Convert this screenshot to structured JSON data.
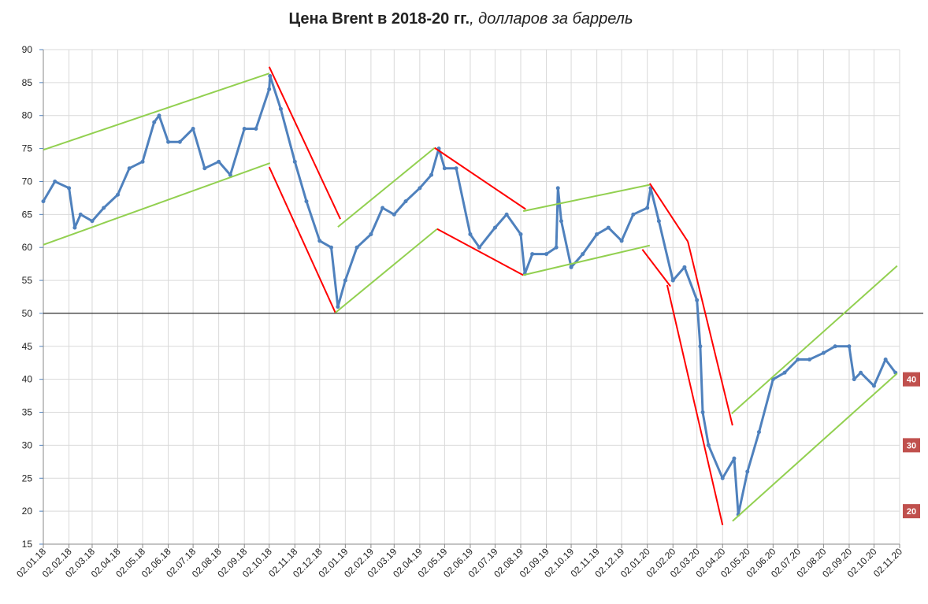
{
  "chart_data": {
    "type": "line",
    "title": "Цена Brent в 2018-20 гг.",
    "title_suffix": ", долларов за баррель",
    "x": [
      "02.01.18",
      "16.01.18",
      "02.02.18",
      "09.02.18",
      "16.02.18",
      "02.03.18",
      "16.03.18",
      "02.04.18",
      "16.04.18",
      "02.05.18",
      "16.05.18",
      "22.05.18",
      "02.06.18",
      "16.06.18",
      "02.07.18",
      "16.07.18",
      "02.08.18",
      "16.08.18",
      "02.09.18",
      "16.09.18",
      "02.10.18",
      "03.10.18",
      "16.10.18",
      "02.11.18",
      "16.11.18",
      "02.12.18",
      "16.12.18",
      "24.12.18",
      "02.01.19",
      "16.01.19",
      "02.02.19",
      "16.02.19",
      "02.03.19",
      "16.03.19",
      "02.04.19",
      "16.04.19",
      "25.04.19",
      "02.05.19",
      "16.05.19",
      "02.06.19",
      "13.06.19",
      "02.07.19",
      "16.07.19",
      "02.08.19",
      "07.08.19",
      "16.08.19",
      "02.09.19",
      "14.09.19",
      "16.09.19",
      "20.09.19",
      "02.10.19",
      "16.10.19",
      "02.11.19",
      "16.11.19",
      "02.12.19",
      "16.12.19",
      "02.01.20",
      "06.01.20",
      "16.01.20",
      "02.02.20",
      "16.02.20",
      "02.03.20",
      "06.03.20",
      "09.03.20",
      "16.03.20",
      "02.04.20",
      "16.04.20",
      "21.04.20",
      "02.05.20",
      "16.05.20",
      "02.06.20",
      "16.06.20",
      "02.07.20",
      "16.07.20",
      "02.08.20",
      "16.08.20",
      "02.09.20",
      "08.09.20",
      "16.09.20",
      "02.10.20",
      "16.10.20",
      "28.10.20"
    ],
    "series": [
      {
        "name": "Brent",
        "color": "#4f81bd",
        "values": [
          67,
          70,
          69,
          63,
          65,
          64,
          66,
          68,
          72,
          73,
          79,
          80,
          76,
          76,
          78,
          72,
          73,
          71,
          78,
          78,
          84,
          86,
          81,
          73,
          67,
          61,
          60,
          51,
          55,
          60,
          62,
          66,
          65,
          67,
          69,
          71,
          75,
          72,
          72,
          62,
          60,
          63,
          65,
          62,
          56,
          59,
          59,
          60,
          69,
          64,
          57,
          59,
          62,
          63,
          61,
          65,
          66,
          69,
          64,
          55,
          57,
          52,
          45,
          35,
          30,
          25,
          28,
          19.5,
          26,
          32,
          40,
          41,
          43,
          43,
          44,
          45,
          45,
          40,
          41,
          39,
          43,
          41
        ]
      }
    ],
    "xlim": [
      "02.01.18",
      "02.11.20"
    ],
    "xticks": [
      "02.01.18",
      "02.02.18",
      "02.03.18",
      "02.04.18",
      "02.05.18",
      "02.06.18",
      "02.07.18",
      "02.08.18",
      "02.09.18",
      "02.10.18",
      "02.11.18",
      "02.12.18",
      "02.01.19",
      "02.02.19",
      "02.03.19",
      "02.04.19",
      "02.05.19",
      "02.06.19",
      "02.07.19",
      "02.08.19",
      "02.09.19",
      "02.10.19",
      "02.11.19",
      "02.12.19",
      "02.01.20",
      "02.02.20",
      "02.03.20",
      "02.04.20",
      "02.05.20",
      "02.06.20",
      "02.07.20",
      "02.08.20",
      "02.09.20",
      "02.10.20",
      "02.11.20"
    ],
    "ylim": [
      15,
      90
    ],
    "yticks": [
      15,
      20,
      25,
      30,
      35,
      40,
      45,
      50,
      55,
      60,
      65,
      70,
      75,
      80,
      85,
      90
    ],
    "grid": true,
    "reference_line": 50,
    "trendlines": [
      {
        "color": "#92d050",
        "x": [
          "02.01.18",
          "02.10.18"
        ],
        "y": [
          74.8,
          86.4
        ]
      },
      {
        "color": "#92d050",
        "x": [
          "02.01.18",
          "03.10.18"
        ],
        "y": [
          60.4,
          72.8
        ]
      },
      {
        "color": "#ff0000",
        "x": [
          "02.10.18",
          "27.12.18"
        ],
        "y": [
          87.4,
          64.3
        ]
      },
      {
        "color": "#ff0000",
        "x": [
          "02.10.18",
          "21.12.18"
        ],
        "y": [
          72.2,
          50.1
        ]
      },
      {
        "color": "#92d050",
        "x": [
          "24.12.18",
          "20.04.19"
        ],
        "y": [
          63.1,
          75.1
        ]
      },
      {
        "color": "#92d050",
        "x": [
          "21.12.18",
          "23.04.19"
        ],
        "y": [
          50.1,
          62.8
        ]
      },
      {
        "color": "#ff0000",
        "x": [
          "20.04.19",
          "08.08.19"
        ],
        "y": [
          75.1,
          65.8
        ]
      },
      {
        "color": "#ff0000",
        "x": [
          "23.04.19",
          "05.08.19"
        ],
        "y": [
          62.8,
          55.8
        ]
      },
      {
        "color": "#92d050",
        "x": [
          "05.08.19",
          "05.01.20"
        ],
        "y": [
          65.5,
          69.5
        ]
      },
      {
        "color": "#92d050",
        "x": [
          "05.08.19",
          "05.01.20"
        ],
        "y": [
          55.8,
          60.3
        ]
      },
      {
        "color": "#ff0000",
        "x": [
          "05.01.20",
          "20.02.20"
        ],
        "y": [
          69.7,
          60.9
        ]
      },
      {
        "color": "#ff0000",
        "x": [
          "27.12.19",
          "30.01.20"
        ],
        "y": [
          59.7,
          54.1
        ]
      },
      {
        "color": "#ff0000",
        "x": [
          "20.02.20",
          "14.04.20"
        ],
        "y": [
          60.9,
          33.0
        ]
      },
      {
        "color": "#ff0000",
        "x": [
          "26.01.20",
          "02.04.20"
        ],
        "y": [
          54.3,
          17.9
        ]
      },
      {
        "color": "#92d050",
        "x": [
          "13.04.20",
          "30.10.20"
        ],
        "y": [
          34.8,
          57.2
        ]
      },
      {
        "color": "#92d050",
        "x": [
          "14.04.20",
          "30.10.20"
        ],
        "y": [
          18.5,
          40.9
        ]
      }
    ],
    "side_labels": [
      40,
      30,
      20
    ],
    "side_label_color": "#c0504d"
  }
}
